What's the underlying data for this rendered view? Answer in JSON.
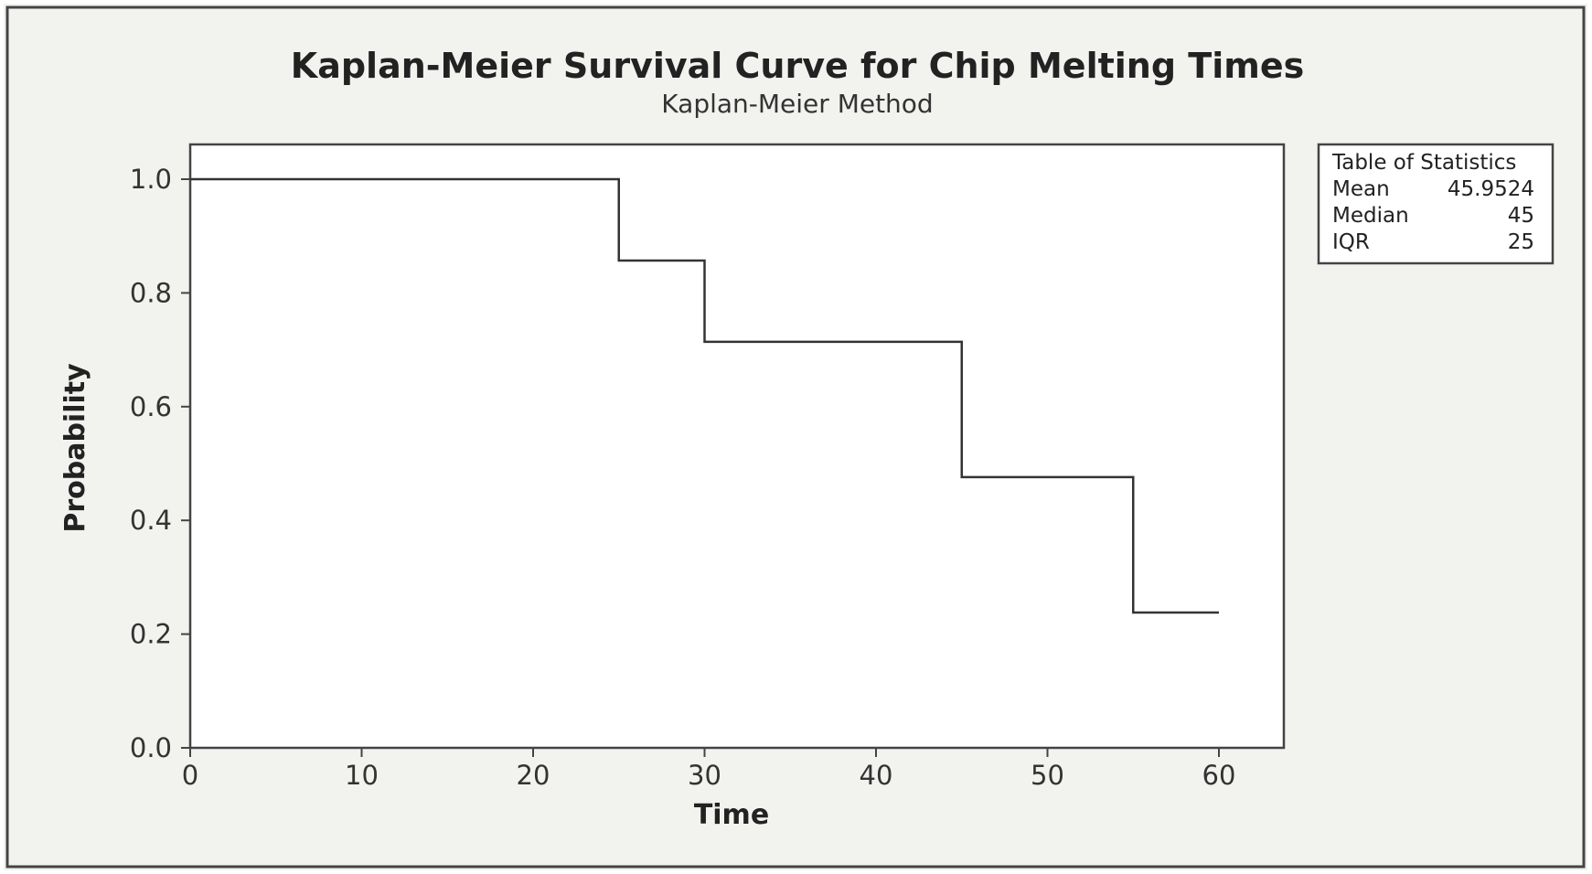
{
  "chart_data": {
    "type": "line",
    "step": true,
    "title": "Kaplan-Meier Survival Curve for Chip Melting Times",
    "subtitle": "Kaplan-Meier Method",
    "xlabel": "Time",
    "ylabel": "Probability",
    "xlim": [
      0,
      64
    ],
    "ylim": [
      0,
      1.05
    ],
    "x_ticks": [
      0,
      10,
      20,
      30,
      40,
      50,
      60
    ],
    "y_ticks": [
      0.0,
      0.2,
      0.4,
      0.6,
      0.8,
      1.0
    ],
    "x_tick_labels": [
      "0",
      "10",
      "20",
      "30",
      "40",
      "50",
      "60"
    ],
    "y_tick_labels": [
      "0.0",
      "0.2",
      "0.4",
      "0.6",
      "0.8",
      "1.0"
    ],
    "grid": false,
    "series": [
      {
        "x": [
          0,
          25,
          30,
          45,
          55,
          60
        ],
        "y": [
          1.0,
          0.857,
          0.714,
          0.476,
          0.238,
          0.238
        ]
      }
    ],
    "stats_table": {
      "title": "Table of Statistics",
      "rows": [
        {
          "label": "Mean",
          "value": "45.9524"
        },
        {
          "label": "Median",
          "value": "45"
        },
        {
          "label": "IQR",
          "value": "25"
        }
      ],
      "placement": "top-right"
    }
  },
  "colors": {
    "page_background": "#f2f2ef",
    "plot_background": "#ffffff",
    "line": "#333333",
    "frame": "#444444"
  }
}
